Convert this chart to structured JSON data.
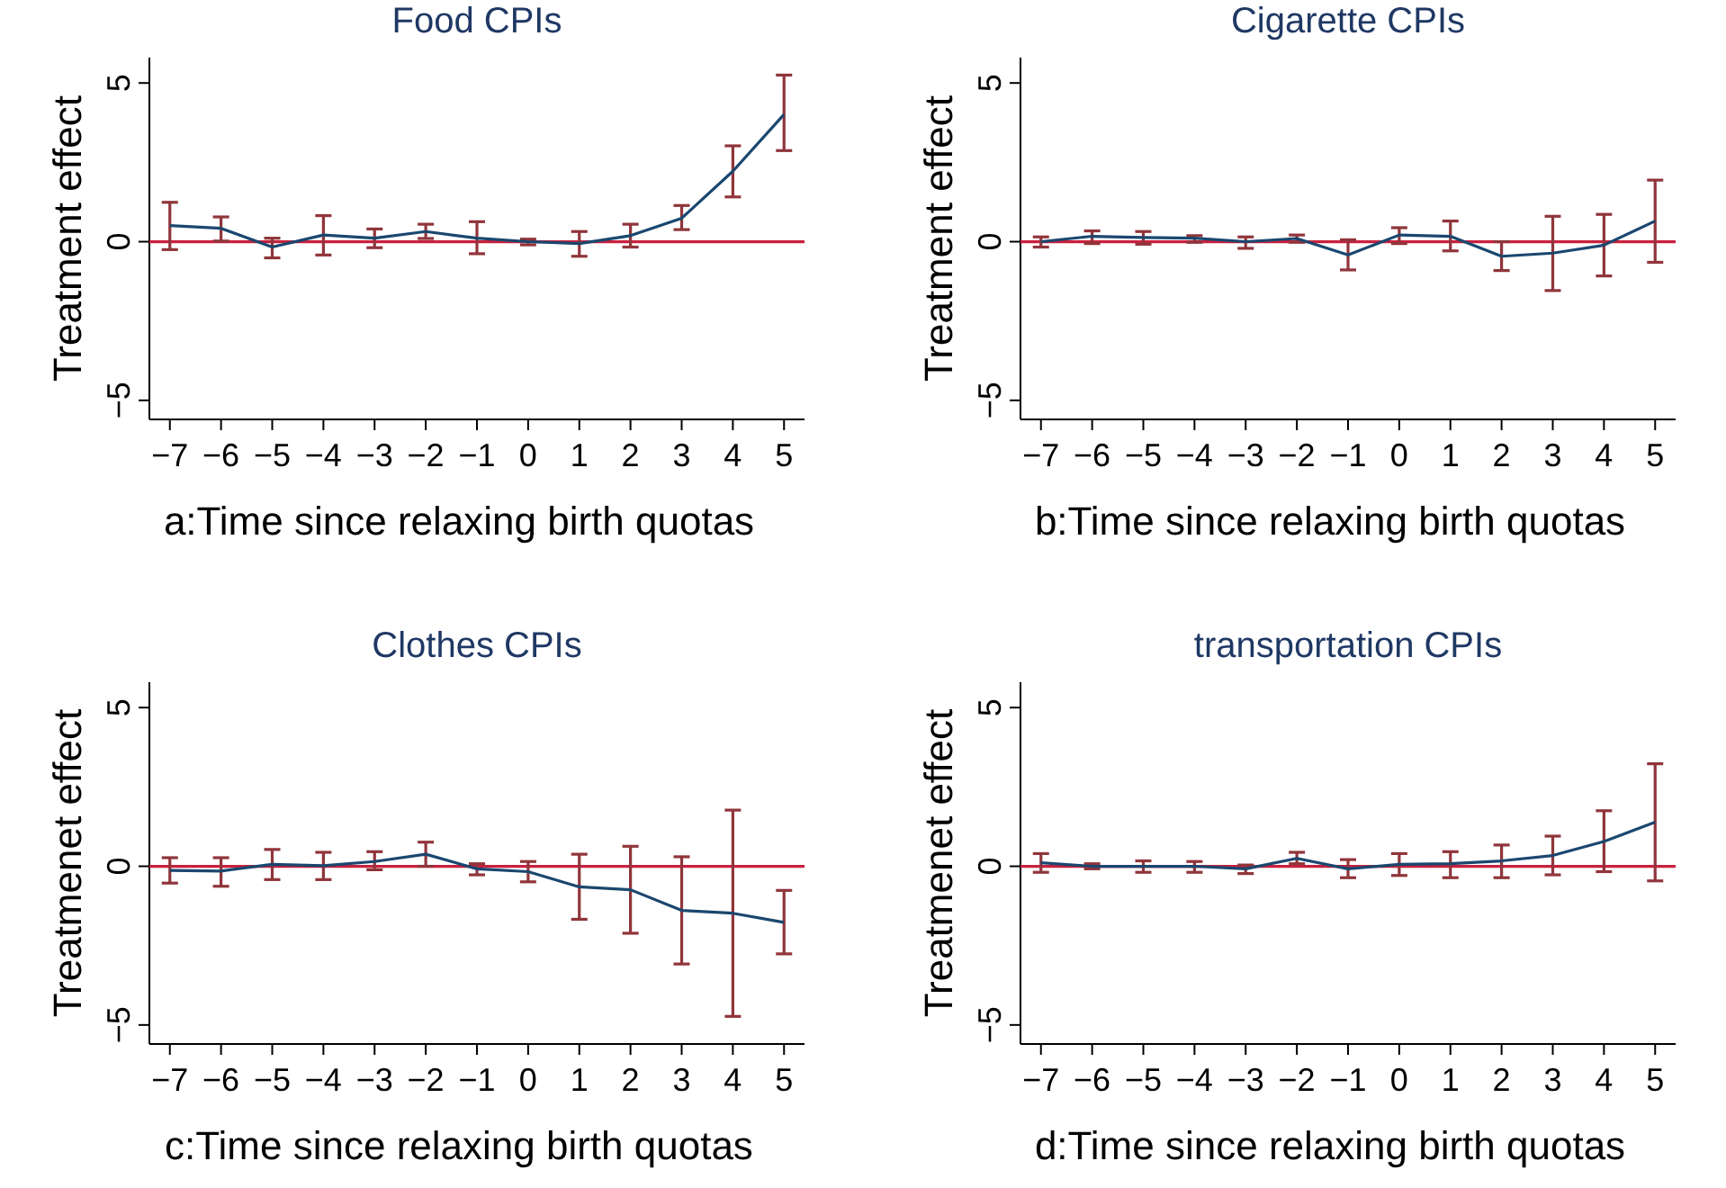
{
  "chart_data": [
    {
      "type": "line",
      "title": "Food CPIs",
      "xlabel": "a:Time since relaxing birth quotas",
      "ylabel": "Treatment effect",
      "x": [
        -7,
        -6,
        -5,
        -4,
        -3,
        -2,
        -1,
        0,
        1,
        2,
        3,
        4,
        5
      ],
      "xlim": [
        -7.4,
        5.4
      ],
      "ylim": [
        -5.6,
        5.8
      ],
      "xticks": [
        -7,
        -6,
        -5,
        -4,
        -3,
        -2,
        -1,
        0,
        1,
        2,
        3,
        4,
        5
      ],
      "yticks": [
        -5,
        0,
        5
      ],
      "grid": false,
      "marker": "none",
      "line_style": "solid",
      "series": [
        {
          "color": "#1a476f",
          "values": [
            0.51,
            0.42,
            -0.17,
            0.21,
            0.11,
            0.32,
            0.11,
            0,
            -0.06,
            0.19,
            0.74,
            2.22,
            4.01
          ],
          "errors": [
            [
              -0.25,
              1.24
            ],
            [
              0.02,
              0.78
            ],
            [
              -0.51,
              0.11
            ],
            [
              -0.42,
              0.82
            ],
            [
              -0.19,
              0.4
            ],
            [
              0.1,
              0.55
            ],
            [
              -0.38,
              0.63
            ],
            [
              -0.1,
              0.08
            ],
            [
              -0.46,
              0.32
            ],
            [
              -0.17,
              0.55
            ],
            [
              0.38,
              1.14
            ],
            [
              1.41,
              3.02
            ],
            [
              2.87,
              5.25
            ]
          ]
        }
      ],
      "ref_lines": [
        {
          "axis": "y",
          "value": 0,
          "color": "#c8203e"
        }
      ]
    },
    {
      "type": "line",
      "title": "Cigarette CPIs",
      "xlabel": "b:Time since relaxing birth quotas",
      "ylabel": "Treatment effect",
      "x": [
        -7,
        -6,
        -5,
        -4,
        -3,
        -2,
        -1,
        0,
        1,
        2,
        3,
        4,
        5
      ],
      "xlim": [
        -7.4,
        5.4
      ],
      "ylim": [
        -5.6,
        5.8
      ],
      "xticks": [
        -7,
        -6,
        -5,
        -4,
        -3,
        -2,
        -1,
        0,
        1,
        2,
        3,
        4,
        5
      ],
      "yticks": [
        -5,
        0,
        5
      ],
      "grid": false,
      "marker": "none",
      "line_style": "solid",
      "series": [
        {
          "color": "#1a476f",
          "values": [
            0,
            0.17,
            0.13,
            0.11,
            0,
            0.1,
            -0.42,
            0.21,
            0.17,
            -0.46,
            -0.36,
            -0.11,
            0.65
          ],
          "errors": [
            [
              -0.17,
              0.15
            ],
            [
              -0.06,
              0.34
            ],
            [
              -0.08,
              0.32
            ],
            [
              -0.02,
              0.19
            ],
            [
              -0.21,
              0.15
            ],
            [
              -0.02,
              0.21
            ],
            [
              -0.89,
              0.06
            ],
            [
              -0.06,
              0.44
            ],
            [
              -0.29,
              0.65
            ],
            [
              -0.91,
              0
            ],
            [
              -1.54,
              0.8
            ],
            [
              -1.08,
              0.86
            ],
            [
              -0.65,
              1.94
            ]
          ]
        }
      ],
      "ref_lines": [
        {
          "axis": "y",
          "value": 0,
          "color": "#c8203e"
        }
      ]
    },
    {
      "type": "line",
      "title": "Clothes CPIs",
      "xlabel": "c:Time since relaxing birth quotas",
      "ylabel": "Treatmenet effect",
      "x": [
        -7,
        -6,
        -5,
        -4,
        -3,
        -2,
        -1,
        0,
        1,
        2,
        3,
        4,
        5
      ],
      "xlim": [
        -7.4,
        5.4
      ],
      "ylim": [
        -5.6,
        5.8
      ],
      "xticks": [
        -7,
        -6,
        -5,
        -4,
        -3,
        -2,
        -1,
        0,
        1,
        2,
        3,
        4,
        5
      ],
      "yticks": [
        -5,
        0,
        5
      ],
      "grid": false,
      "marker": "none",
      "line_style": "solid",
      "series": [
        {
          "color": "#1a476f",
          "values": [
            -0.13,
            -0.15,
            0.06,
            0.02,
            0.15,
            0.38,
            -0.08,
            -0.17,
            -0.65,
            -0.74,
            -1.39,
            -1.48,
            -1.77
          ],
          "errors": [
            [
              -0.53,
              0.27
            ],
            [
              -0.63,
              0.27
            ],
            [
              -0.42,
              0.53
            ],
            [
              -0.42,
              0.44
            ],
            [
              -0.11,
              0.46
            ],
            [
              0,
              0.76
            ],
            [
              -0.27,
              0.08
            ],
            [
              -0.49,
              0.15
            ],
            [
              -1.67,
              0.38
            ],
            [
              -2.11,
              0.63
            ],
            [
              -3.08,
              0.3
            ],
            [
              -4.73,
              1.77
            ],
            [
              -2.76,
              -0.76
            ]
          ]
        }
      ],
      "ref_lines": [
        {
          "axis": "y",
          "value": 0,
          "color": "#c8203e"
        }
      ]
    },
    {
      "type": "line",
      "title": "transportation CPIs",
      "xlabel": "d:Time since relaxing birth quotas",
      "ylabel": "Treatmenet effect",
      "x": [
        -7,
        -6,
        -5,
        -4,
        -3,
        -2,
        -1,
        0,
        1,
        2,
        3,
        4,
        5
      ],
      "xlim": [
        -7.4,
        5.4
      ],
      "ylim": [
        -5.6,
        5.8
      ],
      "xticks": [
        -7,
        -6,
        -5,
        -4,
        -3,
        -2,
        -1,
        0,
        1,
        2,
        3,
        4,
        5
      ],
      "yticks": [
        -5,
        0,
        5
      ],
      "grid": false,
      "marker": "none",
      "line_style": "solid",
      "series": [
        {
          "color": "#1a476f",
          "values": [
            0.11,
            0,
            0,
            0,
            -0.08,
            0.25,
            -0.08,
            0.06,
            0.08,
            0.17,
            0.34,
            0.78,
            1.39
          ],
          "errors": [
            [
              -0.19,
              0.4
            ],
            [
              -0.08,
              0.08
            ],
            [
              -0.19,
              0.17
            ],
            [
              -0.19,
              0.15
            ],
            [
              -0.23,
              0.04
            ],
            [
              0.08,
              0.44
            ],
            [
              -0.36,
              0.21
            ],
            [
              -0.29,
              0.4
            ],
            [
              -0.36,
              0.46
            ],
            [
              -0.36,
              0.67
            ],
            [
              -0.27,
              0.95
            ],
            [
              -0.17,
              1.75
            ],
            [
              -0.46,
              3.23
            ]
          ]
        }
      ],
      "ref_lines": [
        {
          "axis": "y",
          "value": 0,
          "color": "#c8203e"
        }
      ]
    }
  ]
}
